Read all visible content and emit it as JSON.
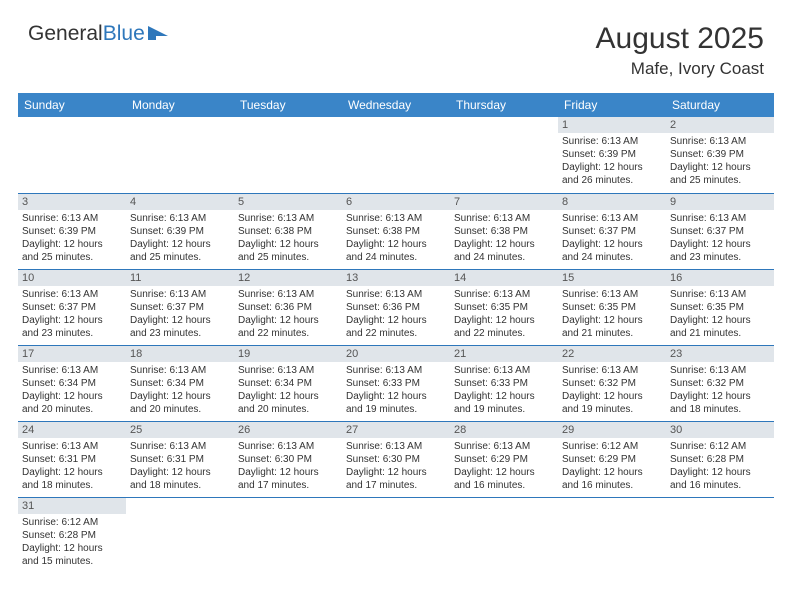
{
  "logo": {
    "part1": "General",
    "part2": "Blue"
  },
  "title": "August 2025",
  "location": "Mafe, Ivory Coast",
  "colors": {
    "header_bg": "#3a85c8",
    "border": "#2e77bb",
    "daynum_bg": "#e0e5ea",
    "logo_blue": "#2e77bb",
    "text": "#333333",
    "background": "#ffffff"
  },
  "day_headers": [
    "Sunday",
    "Monday",
    "Tuesday",
    "Wednesday",
    "Thursday",
    "Friday",
    "Saturday"
  ],
  "fonts": {
    "title_size": 30,
    "location_size": 17,
    "header_size": 12,
    "cell_size": 10,
    "daynum_size": 11
  },
  "weeks": [
    [
      null,
      null,
      null,
      null,
      null,
      {
        "n": "1",
        "sr": "6:13 AM",
        "ss": "6:39 PM",
        "dlh": "12",
        "dlm": "26"
      },
      {
        "n": "2",
        "sr": "6:13 AM",
        "ss": "6:39 PM",
        "dlh": "12",
        "dlm": "25"
      }
    ],
    [
      {
        "n": "3",
        "sr": "6:13 AM",
        "ss": "6:39 PM",
        "dlh": "12",
        "dlm": "25"
      },
      {
        "n": "4",
        "sr": "6:13 AM",
        "ss": "6:39 PM",
        "dlh": "12",
        "dlm": "25"
      },
      {
        "n": "5",
        "sr": "6:13 AM",
        "ss": "6:38 PM",
        "dlh": "12",
        "dlm": "25"
      },
      {
        "n": "6",
        "sr": "6:13 AM",
        "ss": "6:38 PM",
        "dlh": "12",
        "dlm": "24"
      },
      {
        "n": "7",
        "sr": "6:13 AM",
        "ss": "6:38 PM",
        "dlh": "12",
        "dlm": "24"
      },
      {
        "n": "8",
        "sr": "6:13 AM",
        "ss": "6:37 PM",
        "dlh": "12",
        "dlm": "24"
      },
      {
        "n": "9",
        "sr": "6:13 AM",
        "ss": "6:37 PM",
        "dlh": "12",
        "dlm": "23"
      }
    ],
    [
      {
        "n": "10",
        "sr": "6:13 AM",
        "ss": "6:37 PM",
        "dlh": "12",
        "dlm": "23"
      },
      {
        "n": "11",
        "sr": "6:13 AM",
        "ss": "6:37 PM",
        "dlh": "12",
        "dlm": "23"
      },
      {
        "n": "12",
        "sr": "6:13 AM",
        "ss": "6:36 PM",
        "dlh": "12",
        "dlm": "22"
      },
      {
        "n": "13",
        "sr": "6:13 AM",
        "ss": "6:36 PM",
        "dlh": "12",
        "dlm": "22"
      },
      {
        "n": "14",
        "sr": "6:13 AM",
        "ss": "6:35 PM",
        "dlh": "12",
        "dlm": "22"
      },
      {
        "n": "15",
        "sr": "6:13 AM",
        "ss": "6:35 PM",
        "dlh": "12",
        "dlm": "21"
      },
      {
        "n": "16",
        "sr": "6:13 AM",
        "ss": "6:35 PM",
        "dlh": "12",
        "dlm": "21"
      }
    ],
    [
      {
        "n": "17",
        "sr": "6:13 AM",
        "ss": "6:34 PM",
        "dlh": "12",
        "dlm": "20"
      },
      {
        "n": "18",
        "sr": "6:13 AM",
        "ss": "6:34 PM",
        "dlh": "12",
        "dlm": "20"
      },
      {
        "n": "19",
        "sr": "6:13 AM",
        "ss": "6:34 PM",
        "dlh": "12",
        "dlm": "20"
      },
      {
        "n": "20",
        "sr": "6:13 AM",
        "ss": "6:33 PM",
        "dlh": "12",
        "dlm": "19"
      },
      {
        "n": "21",
        "sr": "6:13 AM",
        "ss": "6:33 PM",
        "dlh": "12",
        "dlm": "19"
      },
      {
        "n": "22",
        "sr": "6:13 AM",
        "ss": "6:32 PM",
        "dlh": "12",
        "dlm": "19"
      },
      {
        "n": "23",
        "sr": "6:13 AM",
        "ss": "6:32 PM",
        "dlh": "12",
        "dlm": "18"
      }
    ],
    [
      {
        "n": "24",
        "sr": "6:13 AM",
        "ss": "6:31 PM",
        "dlh": "12",
        "dlm": "18"
      },
      {
        "n": "25",
        "sr": "6:13 AM",
        "ss": "6:31 PM",
        "dlh": "12",
        "dlm": "18"
      },
      {
        "n": "26",
        "sr": "6:13 AM",
        "ss": "6:30 PM",
        "dlh": "12",
        "dlm": "17"
      },
      {
        "n": "27",
        "sr": "6:13 AM",
        "ss": "6:30 PM",
        "dlh": "12",
        "dlm": "17"
      },
      {
        "n": "28",
        "sr": "6:13 AM",
        "ss": "6:29 PM",
        "dlh": "12",
        "dlm": "16"
      },
      {
        "n": "29",
        "sr": "6:12 AM",
        "ss": "6:29 PM",
        "dlh": "12",
        "dlm": "16"
      },
      {
        "n": "30",
        "sr": "6:12 AM",
        "ss": "6:28 PM",
        "dlh": "12",
        "dlm": "16"
      }
    ],
    [
      {
        "n": "31",
        "sr": "6:12 AM",
        "ss": "6:28 PM",
        "dlh": "12",
        "dlm": "15"
      },
      null,
      null,
      null,
      null,
      null,
      null
    ]
  ],
  "labels": {
    "sunrise": "Sunrise:",
    "sunset": "Sunset:",
    "daylight": "Daylight:",
    "hours": "hours",
    "and": "and",
    "minutes": "minutes."
  }
}
